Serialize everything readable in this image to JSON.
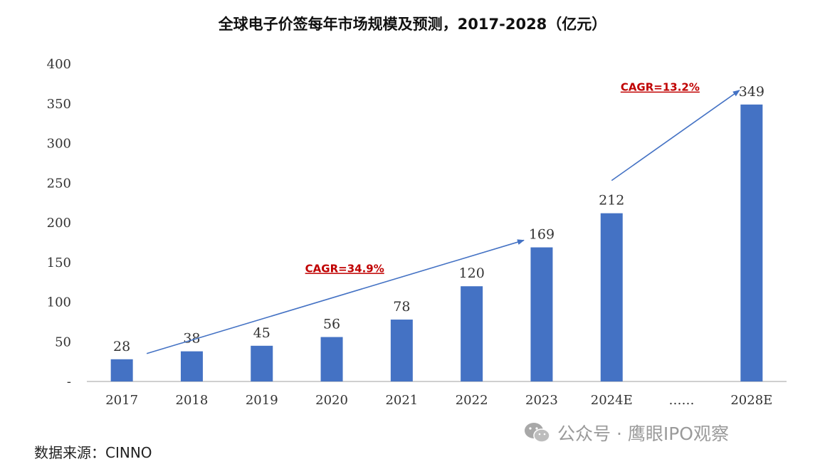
{
  "colors": {
    "bar": "#4472C4",
    "arrow": "#4472C4",
    "cagr": "#C00000",
    "axis": "#BFBFBF"
  },
  "chart_data": {
    "type": "bar",
    "title": "全球电子价签每年市场规模及预测，2017-2028（亿元）",
    "categories": [
      "2017",
      "2018",
      "2019",
      "2020",
      "2021",
      "2022",
      "2023",
      "2024E",
      "……",
      "2028E"
    ],
    "values": [
      28,
      38,
      45,
      56,
      78,
      120,
      169,
      212,
      null,
      349
    ],
    "data_labels": [
      "28",
      "38",
      "45",
      "56",
      "78",
      "120",
      "169",
      "212",
      "",
      "349"
    ],
    "y_ticks": [
      "-",
      "50",
      "100",
      "150",
      "200",
      "250",
      "300",
      "350",
      "400"
    ],
    "y_tick_values": [
      0,
      50,
      100,
      150,
      200,
      250,
      300,
      350,
      400
    ],
    "ylim": [
      0,
      400
    ],
    "grid": false,
    "annotations": [
      {
        "text": "CAGR=34.9%",
        "from_index": 0,
        "to_index": 6
      },
      {
        "text": "CAGR=13.2%",
        "from_index": 7,
        "to_index": 9
      }
    ]
  },
  "source": "数据来源：CINNO",
  "watermark": {
    "text": "公众号 · 鹰眼IPO观察",
    "icon": "wechat-icon"
  }
}
